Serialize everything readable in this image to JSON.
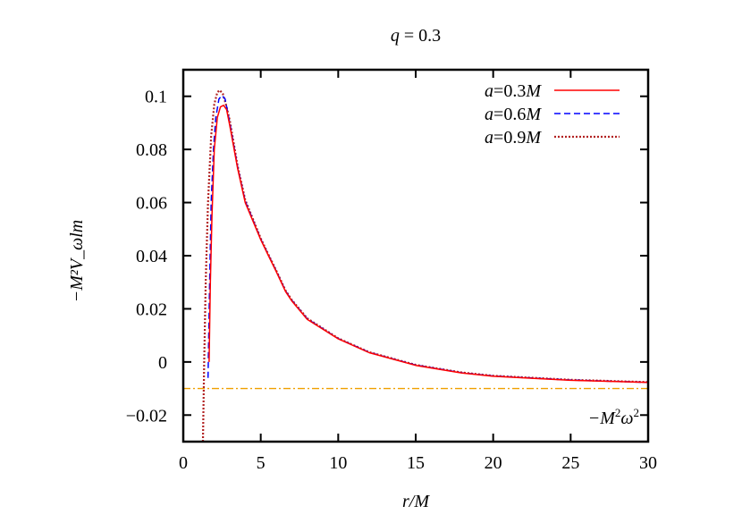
{
  "chart_data": {
    "type": "line",
    "title": "q = 0.3",
    "title_var": "q",
    "title_rest": " = 0.3",
    "xlabel": "r/M",
    "ylabel": "−M²V_ωlm",
    "xlim": [
      0,
      30
    ],
    "ylim": [
      -0.03,
      0.11
    ],
    "xticks": [
      0,
      5,
      10,
      15,
      20,
      25,
      30
    ],
    "xtick_labels": [
      "0",
      "5",
      "10",
      "15",
      "20",
      "25",
      "30"
    ],
    "yticks": [
      -0.02,
      0,
      0.02,
      0.04,
      0.06,
      0.08,
      0.1
    ],
    "ytick_labels": [
      "−0.02",
      "0",
      "0.02",
      "0.04",
      "0.06",
      "0.08",
      "0.1"
    ],
    "grid": false,
    "legend_placement": "top-right",
    "series": [
      {
        "name": "a=0.3M",
        "color": "#ff0000",
        "style": "solid",
        "x": [
          1.67,
          1.75,
          1.85,
          2.0,
          2.2,
          2.4,
          2.6,
          2.8,
          3.0,
          3.5,
          4,
          5,
          5.5,
          6,
          6.6,
          7,
          8,
          10,
          12,
          15,
          18,
          20,
          25,
          30
        ],
        "y": [
          0.0,
          0.03,
          0.055,
          0.08,
          0.092,
          0.096,
          0.0966,
          0.095,
          0.089,
          0.073,
          0.06,
          0.046,
          0.04,
          0.034,
          0.0265,
          0.023,
          0.016,
          0.0087,
          0.0035,
          -0.0013,
          -0.0042,
          -0.0054,
          -0.0069,
          -0.0077
        ]
      },
      {
        "name": "a=0.6M",
        "color": "#0000ff",
        "style": "dashed",
        "x": [
          1.6,
          1.7,
          1.8,
          1.95,
          2.1,
          2.3,
          2.5,
          2.7,
          3.0,
          3.5,
          4,
          5,
          5.5,
          6,
          6.6,
          7,
          8,
          10,
          12,
          15,
          18,
          20,
          25,
          30
        ],
        "y": [
          -0.006,
          0.03,
          0.06,
          0.08,
          0.092,
          0.099,
          0.1003,
          0.099,
          0.09,
          0.0735,
          0.0605,
          0.0462,
          0.0402,
          0.0342,
          0.0267,
          0.0232,
          0.0162,
          0.0088,
          0.0036,
          -0.0012,
          -0.0041,
          -0.0053,
          -0.0068,
          -0.0077
        ]
      },
      {
        "name": "a=0.9M",
        "color": "#b22222",
        "style": "dotted",
        "x": [
          1.27,
          1.35,
          1.45,
          1.6,
          1.8,
          2.0,
          2.2,
          2.35,
          2.55,
          2.8,
          3.0,
          3.5,
          4,
          5,
          5.5,
          6,
          6.6,
          7,
          8,
          10,
          12,
          15,
          18,
          20,
          25,
          30
        ],
        "y": [
          -0.03,
          0.0,
          0.03,
          0.06,
          0.085,
          0.097,
          0.1015,
          0.1023,
          0.101,
          0.096,
          0.091,
          0.074,
          0.061,
          0.0465,
          0.0404,
          0.0344,
          0.0269,
          0.0234,
          0.0164,
          0.0089,
          0.0037,
          -0.0011,
          -0.004,
          -0.0052,
          -0.0067,
          -0.0076
        ]
      }
    ],
    "hline": {
      "y": -0.01,
      "label": "−M²ω²",
      "color": "#f0a000",
      "style": "dash-dot"
    }
  }
}
